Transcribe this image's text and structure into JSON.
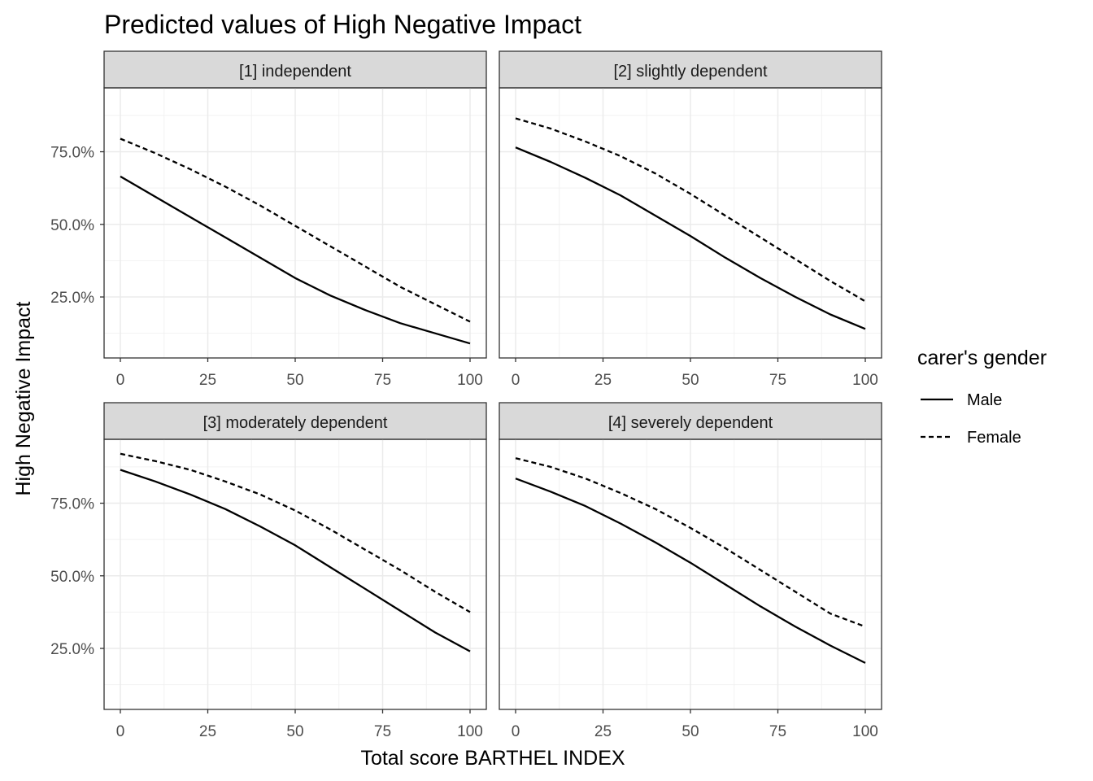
{
  "chart_data": {
    "type": "line",
    "title": "Predicted values of High Negative Impact",
    "xlabel": "Total score BARTHEL INDEX",
    "ylabel": "High Negative Impact",
    "xlim": [
      0,
      100
    ],
    "ylim": [
      0.04,
      0.97
    ],
    "x_ticks": [
      0,
      25,
      50,
      75,
      100
    ],
    "x_tick_labels": [
      "0",
      "25",
      "50",
      "75",
      "100"
    ],
    "y_ticks": [
      0.25,
      0.5,
      0.75
    ],
    "y_tick_labels": [
      "25.0%",
      "50.0%",
      "75.0%"
    ],
    "grid": true,
    "legend": {
      "title": "carer's gender",
      "position": "right",
      "entries": [
        {
          "name": "Male",
          "linetype": "solid"
        },
        {
          "name": "Female",
          "linetype": "dashed"
        }
      ]
    },
    "x": [
      0,
      10,
      20,
      30,
      40,
      50,
      60,
      70,
      80,
      90,
      100
    ],
    "panels": [
      {
        "label": "[1] independent",
        "series": [
          {
            "name": "Male",
            "values": [
              0.665,
              0.595,
              0.525,
              0.455,
              0.385,
              0.315,
              0.255,
              0.205,
              0.16,
              0.125,
              0.09
            ]
          },
          {
            "name": "Female",
            "values": [
              0.795,
              0.745,
              0.69,
              0.63,
              0.565,
              0.495,
              0.425,
              0.355,
              0.285,
              0.225,
              0.165
            ]
          }
        ]
      },
      {
        "label": "[2] slightly dependent",
        "series": [
          {
            "name": "Male",
            "values": [
              0.765,
              0.715,
              0.66,
              0.6,
              0.53,
              0.46,
              0.385,
              0.315,
              0.25,
              0.19,
              0.14
            ]
          },
          {
            "name": "Female",
            "values": [
              0.865,
              0.83,
              0.785,
              0.735,
              0.675,
              0.605,
              0.53,
              0.455,
              0.38,
              0.305,
              0.235
            ]
          }
        ]
      },
      {
        "label": "[3] moderately dependent",
        "series": [
          {
            "name": "Male",
            "values": [
              0.865,
              0.825,
              0.78,
              0.73,
              0.67,
              0.605,
              0.53,
              0.455,
              0.38,
              0.305,
              0.24
            ]
          },
          {
            "name": "Female",
            "values": [
              0.92,
              0.895,
              0.865,
              0.825,
              0.78,
              0.725,
              0.66,
              0.59,
              0.52,
              0.445,
              0.375
            ]
          }
        ]
      },
      {
        "label": "[4] severely dependent",
        "series": [
          {
            "name": "Male",
            "values": [
              0.835,
              0.79,
              0.74,
              0.68,
              0.615,
              0.545,
              0.47,
              0.395,
              0.325,
              0.26,
              0.2
            ]
          },
          {
            "name": "Female",
            "values": [
              0.905,
              0.875,
              0.835,
              0.785,
              0.73,
              0.665,
              0.595,
              0.52,
              0.445,
              0.37,
              0.325
            ]
          }
        ]
      }
    ]
  }
}
